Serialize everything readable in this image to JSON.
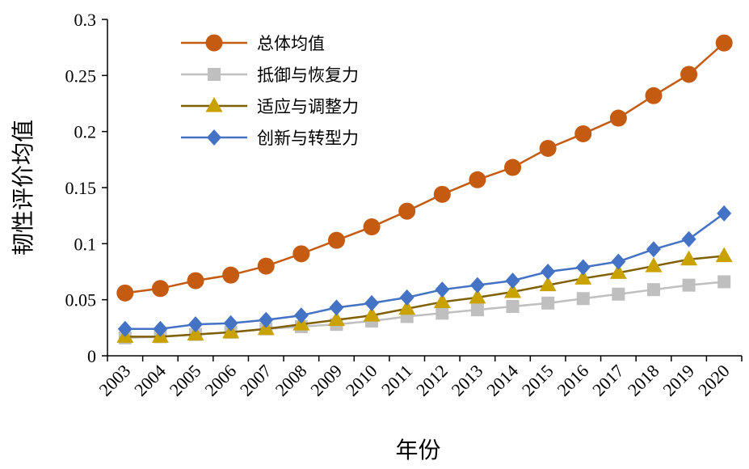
{
  "chart_data": {
    "type": "line",
    "title": "",
    "xlabel": "年份",
    "ylabel": "韧性评价均值",
    "ylim": [
      0,
      0.3
    ],
    "yticks": [
      "0",
      "0.05",
      "0.1",
      "0.15",
      "0.2",
      "0.25",
      "0.3"
    ],
    "grid": false,
    "legend_position": "top-left",
    "categories": [
      "2003",
      "2004",
      "2005",
      "2006",
      "2007",
      "2008",
      "2009",
      "2010",
      "2011",
      "2012",
      "2013",
      "2014",
      "2015",
      "2016",
      "2017",
      "2018",
      "2019",
      "2020"
    ],
    "series": [
      {
        "name": "总体均值",
        "marker": "circle",
        "color": "#C55A11",
        "values": [
          0.056,
          0.06,
          0.067,
          0.072,
          0.08,
          0.091,
          0.103,
          0.115,
          0.129,
          0.144,
          0.157,
          0.168,
          0.185,
          0.198,
          0.212,
          0.232,
          0.251,
          0.279
        ]
      },
      {
        "name": "抵御与恢复力",
        "marker": "square",
        "color": "#BFBFBF",
        "values": [
          0.016,
          0.017,
          0.019,
          0.021,
          0.024,
          0.026,
          0.028,
          0.031,
          0.035,
          0.038,
          0.041,
          0.044,
          0.047,
          0.051,
          0.055,
          0.059,
          0.063,
          0.066
        ]
      },
      {
        "name": "适应与调整力",
        "marker": "triangle",
        "color": "#7F6000",
        "markerColor": "#C9A200",
        "values": [
          0.017,
          0.017,
          0.019,
          0.021,
          0.024,
          0.028,
          0.032,
          0.036,
          0.042,
          0.048,
          0.052,
          0.057,
          0.063,
          0.069,
          0.074,
          0.08,
          0.086,
          0.089
        ]
      },
      {
        "name": "创新与转型力",
        "marker": "diamond",
        "color": "#4472C4",
        "values": [
          0.024,
          0.024,
          0.028,
          0.029,
          0.032,
          0.036,
          0.043,
          0.047,
          0.052,
          0.059,
          0.063,
          0.067,
          0.075,
          0.079,
          0.084,
          0.095,
          0.104,
          0.127
        ]
      }
    ]
  }
}
